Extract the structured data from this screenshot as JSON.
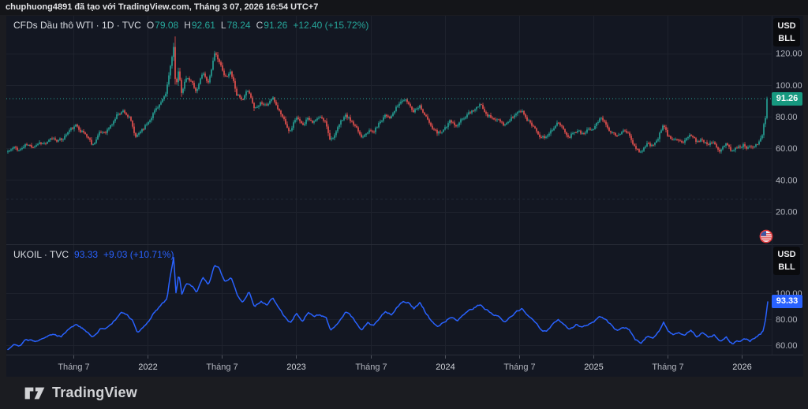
{
  "header": {
    "attribution": "chuphuong4891 đã tạo với TradingView.com, Tháng 3 07, 2026 16:54 UTC+7"
  },
  "footer": {
    "brand": "TradingView"
  },
  "panes": [
    {
      "legend": {
        "title": "CFDs Dầu thô WTI · 1D · TVC",
        "ohlc": [
          {
            "label": "O",
            "value": "79.08"
          },
          {
            "label": "H",
            "value": "92.61"
          },
          {
            "label": "L",
            "value": "78.24"
          },
          {
            "label": "C",
            "value": "91.26"
          }
        ],
        "change": "+12.40 (+15.72%)"
      },
      "unit": [
        "USD",
        "BLL"
      ],
      "price_label": "91.26"
    },
    {
      "legend": {
        "title": "UKOIL · TVC",
        "value": "93.33",
        "change": "+9.03 (+10.71%)"
      },
      "unit": [
        "USD",
        "BLL"
      ],
      "price_label": "93.33"
    }
  ],
  "x_axis": {
    "ticks": [
      {
        "label": "Tháng 7",
        "t": 2021.5,
        "major": false
      },
      {
        "label": "2022",
        "t": 2022.0,
        "major": true
      },
      {
        "label": "Tháng 7",
        "t": 2022.5,
        "major": false
      },
      {
        "label": "2023",
        "t": 2023.0,
        "major": true
      },
      {
        "label": "Tháng 7",
        "t": 2023.5,
        "major": false
      },
      {
        "label": "2024",
        "t": 2024.0,
        "major": true
      },
      {
        "label": "Tháng 7",
        "t": 2024.5,
        "major": false
      },
      {
        "label": "2025",
        "t": 2025.0,
        "major": true
      },
      {
        "label": "Tháng 7",
        "t": 2025.5,
        "major": false
      },
      {
        "label": "2026",
        "t": 2026.0,
        "major": true
      }
    ]
  },
  "colors": {
    "bg_outer": "#1b1c21",
    "bg_header": "#141519",
    "bg_chart": "#131722",
    "grid": "#1e222d",
    "separator": "#2a2e39",
    "axis_text": "#b2b5be",
    "axis_text_major": "#d0d3d9",
    "tick_mark": "#50545e",
    "up": "#26a69a",
    "down": "#ef5350",
    "up_badge": "#179980",
    "line": "#2962ff",
    "legend_symbol": "#d8dbe1",
    "legend_letter": "#c7cad1",
    "header_text": "#e3e4e7",
    "badge_bg": "#0a0b0e",
    "badge_text": "#ececee",
    "footer_text": "#d2d3d6",
    "aux_dashed": "#232837"
  },
  "chart_data": [
    {
      "type": "candlestick",
      "title": "CFDs Dầu thô WTI · 1D · TVC",
      "symbol": "CFDs Dầu thô WTI",
      "interval": "1D",
      "exchange": "TVC",
      "unit": "USD/BLL",
      "x_range": [
        2021.06,
        2026.17
      ],
      "ylim": [
        0,
        143
      ],
      "y_ticks": [
        120,
        100,
        80,
        60,
        40,
        20
      ],
      "price_line": 91.26,
      "aux_line": 27.8,
      "last": {
        "open": 79.08,
        "high": 92.61,
        "low": 78.24,
        "close": 91.26,
        "change": 12.4,
        "change_pct": 15.72
      },
      "series_anchors": [
        [
          2021.06,
          58
        ],
        [
          2021.1,
          60
        ],
        [
          2021.14,
          59
        ],
        [
          2021.18,
          62
        ],
        [
          2021.22,
          61
        ],
        [
          2021.27,
          64
        ],
        [
          2021.32,
          63
        ],
        [
          2021.36,
          66
        ],
        [
          2021.42,
          65
        ],
        [
          2021.47,
          71
        ],
        [
          2021.52,
          74
        ],
        [
          2021.56,
          71
        ],
        [
          2021.6,
          67
        ],
        [
          2021.63,
          62
        ],
        [
          2021.67,
          69
        ],
        [
          2021.72,
          71
        ],
        [
          2021.76,
          75
        ],
        [
          2021.8,
          82
        ],
        [
          2021.84,
          84
        ],
        [
          2021.88,
          79
        ],
        [
          2021.92,
          66
        ],
        [
          2021.96,
          72
        ],
        [
          2022.0,
          76
        ],
        [
          2022.04,
          83
        ],
        [
          2022.08,
          88
        ],
        [
          2022.12,
          92
        ],
        [
          2022.15,
          109
        ],
        [
          2022.175,
          125
        ],
        [
          2022.19,
          96
        ],
        [
          2022.21,
          109
        ],
        [
          2022.23,
          95
        ],
        [
          2022.26,
          104
        ],
        [
          2022.3,
          101
        ],
        [
          2022.33,
          96
        ],
        [
          2022.37,
          108
        ],
        [
          2022.41,
          102
        ],
        [
          2022.45,
          119
        ],
        [
          2022.48,
          116
        ],
        [
          2022.52,
          104
        ],
        [
          2022.56,
          109
        ],
        [
          2022.6,
          95
        ],
        [
          2022.64,
          89
        ],
        [
          2022.68,
          97
        ],
        [
          2022.72,
          85
        ],
        [
          2022.76,
          90
        ],
        [
          2022.8,
          87
        ],
        [
          2022.84,
          92
        ],
        [
          2022.88,
          85
        ],
        [
          2022.92,
          78
        ],
        [
          2022.96,
          71
        ],
        [
          2023.0,
          80
        ],
        [
          2023.04,
          74
        ],
        [
          2023.08,
          80
        ],
        [
          2023.12,
          77
        ],
        [
          2023.16,
          79
        ],
        [
          2023.2,
          76
        ],
        [
          2023.23,
          66
        ],
        [
          2023.27,
          70
        ],
        [
          2023.3,
          76
        ],
        [
          2023.33,
          81
        ],
        [
          2023.37,
          77
        ],
        [
          2023.41,
          71
        ],
        [
          2023.44,
          67
        ],
        [
          2023.48,
          72
        ],
        [
          2023.52,
          70
        ],
        [
          2023.56,
          76
        ],
        [
          2023.6,
          82
        ],
        [
          2023.64,
          80
        ],
        [
          2023.68,
          86
        ],
        [
          2023.72,
          91
        ],
        [
          2023.75,
          89
        ],
        [
          2023.79,
          84
        ],
        [
          2023.83,
          88
        ],
        [
          2023.87,
          81
        ],
        [
          2023.91,
          73
        ],
        [
          2023.95,
          69
        ],
        [
          2024.0,
          73
        ],
        [
          2024.04,
          77
        ],
        [
          2024.08,
          73
        ],
        [
          2024.12,
          78
        ],
        [
          2024.16,
          82
        ],
        [
          2024.2,
          85
        ],
        [
          2024.24,
          87
        ],
        [
          2024.28,
          83
        ],
        [
          2024.32,
          79
        ],
        [
          2024.36,
          78
        ],
        [
          2024.4,
          73
        ],
        [
          2024.44,
          78
        ],
        [
          2024.48,
          82
        ],
        [
          2024.52,
          84
        ],
        [
          2024.56,
          78
        ],
        [
          2024.6,
          74
        ],
        [
          2024.64,
          69
        ],
        [
          2024.68,
          66
        ],
        [
          2024.72,
          72
        ],
        [
          2024.76,
          76
        ],
        [
          2024.8,
          71
        ],
        [
          2024.84,
          68
        ],
        [
          2024.88,
          72
        ],
        [
          2024.92,
          70
        ],
        [
          2024.96,
          72
        ],
        [
          2025.0,
          74
        ],
        [
          2025.04,
          79
        ],
        [
          2025.08,
          77
        ],
        [
          2025.12,
          71
        ],
        [
          2025.16,
          67
        ],
        [
          2025.2,
          71
        ],
        [
          2025.24,
          69
        ],
        [
          2025.28,
          60
        ],
        [
          2025.32,
          58
        ],
        [
          2025.36,
          63
        ],
        [
          2025.4,
          61
        ],
        [
          2025.44,
          68
        ],
        [
          2025.47,
          75
        ],
        [
          2025.5,
          68
        ],
        [
          2025.53,
          65
        ],
        [
          2025.57,
          67
        ],
        [
          2025.61,
          65
        ],
        [
          2025.65,
          69
        ],
        [
          2025.69,
          64
        ],
        [
          2025.73,
          66
        ],
        [
          2025.77,
          63
        ],
        [
          2025.81,
          65
        ],
        [
          2025.85,
          60
        ],
        [
          2025.89,
          63
        ],
        [
          2025.93,
          58
        ],
        [
          2025.97,
          60
        ],
        [
          2026.01,
          62
        ],
        [
          2026.05,
          60
        ],
        [
          2026.09,
          63
        ],
        [
          2026.12,
          65
        ],
        [
          2026.14,
          68
        ],
        [
          2026.154,
          79.08
        ],
        [
          2026.17,
          91.26
        ]
      ]
    },
    {
      "type": "line",
      "title": "UKOIL · TVC",
      "symbol": "UKOIL",
      "exchange": "TVC",
      "unit": "USD/BLL",
      "x_range": [
        2021.06,
        2026.17
      ],
      "ylim": [
        54,
        136
      ],
      "y_ticks": [
        100,
        80,
        60
      ],
      "last": {
        "value": 93.33,
        "change": 9.03,
        "change_pct": 10.71
      },
      "series_anchors": [
        [
          2021.06,
          57
        ],
        [
          2021.1,
          61
        ],
        [
          2021.14,
          60
        ],
        [
          2021.18,
          64
        ],
        [
          2021.24,
          63
        ],
        [
          2021.3,
          66
        ],
        [
          2021.36,
          68
        ],
        [
          2021.42,
          67
        ],
        [
          2021.47,
          73
        ],
        [
          2021.52,
          76
        ],
        [
          2021.56,
          73
        ],
        [
          2021.6,
          69
        ],
        [
          2021.63,
          66
        ],
        [
          2021.68,
          72
        ],
        [
          2021.73,
          74
        ],
        [
          2021.78,
          79
        ],
        [
          2021.82,
          85
        ],
        [
          2021.86,
          83
        ],
        [
          2021.9,
          79
        ],
        [
          2021.93,
          69
        ],
        [
          2021.97,
          74
        ],
        [
          2022.01,
          79
        ],
        [
          2022.05,
          86
        ],
        [
          2022.09,
          91
        ],
        [
          2022.13,
          96
        ],
        [
          2022.15,
          112
        ],
        [
          2022.175,
          128
        ],
        [
          2022.19,
          100
        ],
        [
          2022.21,
          115
        ],
        [
          2022.23,
          99
        ],
        [
          2022.26,
          108
        ],
        [
          2022.3,
          105
        ],
        [
          2022.33,
          100
        ],
        [
          2022.37,
          112
        ],
        [
          2022.41,
          106
        ],
        [
          2022.45,
          122
        ],
        [
          2022.48,
          119
        ],
        [
          2022.52,
          108
        ],
        [
          2022.56,
          112
        ],
        [
          2022.6,
          99
        ],
        [
          2022.64,
          93
        ],
        [
          2022.68,
          101
        ],
        [
          2022.72,
          89
        ],
        [
          2022.76,
          94
        ],
        [
          2022.8,
          91
        ],
        [
          2022.84,
          96
        ],
        [
          2022.88,
          89
        ],
        [
          2022.92,
          82
        ],
        [
          2022.96,
          77
        ],
        [
          2023.0,
          85
        ],
        [
          2023.04,
          79
        ],
        [
          2023.08,
          85
        ],
        [
          2023.12,
          82
        ],
        [
          2023.16,
          84
        ],
        [
          2023.2,
          81
        ],
        [
          2023.23,
          71
        ],
        [
          2023.27,
          75
        ],
        [
          2023.3,
          80
        ],
        [
          2023.33,
          86
        ],
        [
          2023.37,
          82
        ],
        [
          2023.41,
          76
        ],
        [
          2023.44,
          72
        ],
        [
          2023.48,
          77
        ],
        [
          2023.52,
          75
        ],
        [
          2023.56,
          81
        ],
        [
          2023.6,
          86
        ],
        [
          2023.64,
          84
        ],
        [
          2023.68,
          90
        ],
        [
          2023.72,
          94
        ],
        [
          2023.75,
          93
        ],
        [
          2023.79,
          88
        ],
        [
          2023.83,
          92
        ],
        [
          2023.87,
          85
        ],
        [
          2023.91,
          78
        ],
        [
          2023.95,
          74
        ],
        [
          2024.0,
          78
        ],
        [
          2024.04,
          82
        ],
        [
          2024.08,
          78
        ],
        [
          2024.12,
          83
        ],
        [
          2024.16,
          86
        ],
        [
          2024.2,
          89
        ],
        [
          2024.24,
          91
        ],
        [
          2024.28,
          87
        ],
        [
          2024.32,
          84
        ],
        [
          2024.36,
          83
        ],
        [
          2024.4,
          78
        ],
        [
          2024.44,
          82
        ],
        [
          2024.48,
          86
        ],
        [
          2024.52,
          88
        ],
        [
          2024.56,
          82
        ],
        [
          2024.6,
          78
        ],
        [
          2024.64,
          73
        ],
        [
          2024.68,
          70
        ],
        [
          2024.72,
          76
        ],
        [
          2024.76,
          80
        ],
        [
          2024.8,
          75
        ],
        [
          2024.84,
          72
        ],
        [
          2024.88,
          76
        ],
        [
          2024.92,
          74
        ],
        [
          2024.96,
          76
        ],
        [
          2025.0,
          78
        ],
        [
          2025.04,
          82
        ],
        [
          2025.08,
          80
        ],
        [
          2025.12,
          75
        ],
        [
          2025.16,
          71
        ],
        [
          2025.2,
          74
        ],
        [
          2025.24,
          72
        ],
        [
          2025.28,
          64
        ],
        [
          2025.32,
          62
        ],
        [
          2025.36,
          67
        ],
        [
          2025.4,
          65
        ],
        [
          2025.44,
          71
        ],
        [
          2025.47,
          78
        ],
        [
          2025.5,
          71
        ],
        [
          2025.53,
          68
        ],
        [
          2025.57,
          70
        ],
        [
          2025.61,
          68
        ],
        [
          2025.65,
          72
        ],
        [
          2025.69,
          67
        ],
        [
          2025.73,
          69
        ],
        [
          2025.77,
          66
        ],
        [
          2025.81,
          68
        ],
        [
          2025.85,
          63
        ],
        [
          2025.89,
          66
        ],
        [
          2025.93,
          61
        ],
        [
          2025.97,
          63
        ],
        [
          2026.01,
          65
        ],
        [
          2026.05,
          63
        ],
        [
          2026.09,
          66
        ],
        [
          2026.12,
          68
        ],
        [
          2026.14,
          71
        ],
        [
          2026.155,
          80
        ],
        [
          2026.17,
          93.33
        ]
      ]
    }
  ]
}
